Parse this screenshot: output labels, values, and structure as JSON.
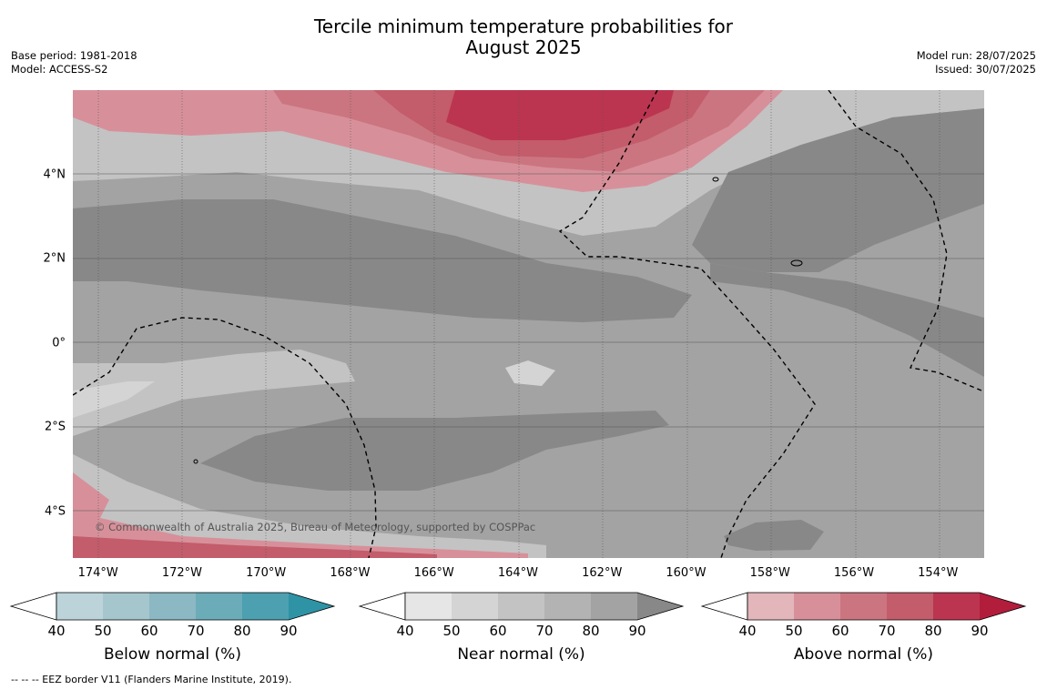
{
  "header": {
    "title_line1": "Tercile minimum temperature probabilities for",
    "title_line2": "August 2025",
    "base_period": "Base period: 1981-2018",
    "model": "Model: ACCESS-S2",
    "model_run": "Model run: 28/07/2025",
    "issued": "Issued: 30/07/2025"
  },
  "map": {
    "copyright": "© Commonwealth of Australia 2025, Bureau of Meteorology, supported by COSPPac",
    "lon_range": [
      -174.6,
      -152.9
    ],
    "lat_range": [
      -5.1,
      6.0
    ],
    "lat_labels": [
      {
        "value": 4,
        "label": "4°N"
      },
      {
        "value": 2,
        "label": "2°N"
      },
      {
        "value": 0,
        "label": "0°"
      },
      {
        "value": -2,
        "label": "2°S"
      },
      {
        "value": -4,
        "label": "4°S"
      }
    ],
    "lon_labels": [
      {
        "value": -174,
        "label": "174°W"
      },
      {
        "value": -172,
        "label": "172°W"
      },
      {
        "value": -170,
        "label": "170°W"
      },
      {
        "value": -168,
        "label": "168°W"
      },
      {
        "value": -166,
        "label": "166°W"
      },
      {
        "value": -164,
        "label": "164°W"
      },
      {
        "value": -162,
        "label": "162°W"
      },
      {
        "value": -160,
        "label": "160°W"
      },
      {
        "value": -158,
        "label": "158°W"
      },
      {
        "value": -156,
        "label": "156°W"
      },
      {
        "value": -154,
        "label": "154°W"
      }
    ]
  },
  "colorbars": [
    {
      "label": "Below normal (%)",
      "ticks": [
        "40",
        "50",
        "60",
        "70",
        "80",
        "90"
      ],
      "colors": [
        "#bcd3da",
        "#a5c6cd",
        "#8bb8c3",
        "#6cacb9",
        "#4ca0b0",
        "#2f93a6"
      ]
    },
    {
      "label": "Near normal (%)",
      "ticks": [
        "40",
        "50",
        "60",
        "70",
        "80",
        "90"
      ],
      "colors": [
        "#e6e6e6",
        "#d4d4d4",
        "#c3c3c3",
        "#b3b3b3",
        "#a3a3a3",
        "#888888"
      ]
    },
    {
      "label": "Above normal (%)",
      "ticks": [
        "40",
        "50",
        "60",
        "70",
        "80",
        "90"
      ],
      "colors": [
        "#e3b6bb",
        "#d7909a",
        "#cb7580",
        "#c35c6b",
        "#bb3550",
        "#b21d3c"
      ]
    }
  ],
  "footnote": "--  --  -- EEZ border V11 (Flanders Marine Institute, 2019)."
}
